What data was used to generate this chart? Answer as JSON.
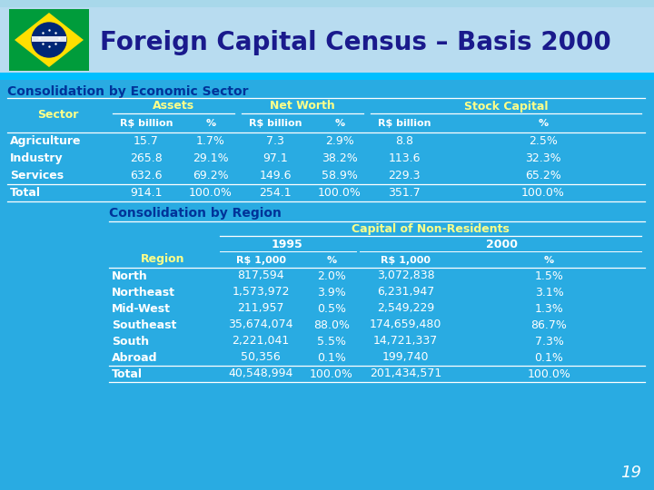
{
  "title": "Foreign Capital Census – Basis 2000",
  "bg_color": "#29ABE2",
  "header_bg": "#ADD8E6",
  "title_color": "#1a1a8c",
  "label_color": "#FFFF88",
  "white": "#FFFFFF",
  "section_color": "#003399",
  "section1_title": "Consolidation by Economic Sector",
  "section2_title": "Consolidation by Region",
  "sector_table": {
    "col_groups": [
      "Assets",
      "Net Worth",
      "Stock Capital"
    ],
    "rows": [
      [
        "Agriculture",
        "15.7",
        "1.7%",
        "7.3",
        "2.9%",
        "8.8",
        "2.5%"
      ],
      [
        "Industry",
        "265.8",
        "29.1%",
        "97.1",
        "38.2%",
        "113.6",
        "32.3%"
      ],
      [
        "Services",
        "632.6",
        "69.2%",
        "149.6",
        "58.9%",
        "229.3",
        "65.2%"
      ]
    ],
    "total_row": [
      "Total",
      "914.1",
      "100.0%",
      "254.1",
      "100.0%",
      "351.7",
      "100.0%"
    ]
  },
  "region_table": {
    "col_group": "Capital of Non-Residents",
    "year_cols": [
      "1995",
      "2000"
    ],
    "rows": [
      [
        "North",
        "817,594",
        "2.0%",
        "3,072,838",
        "1.5%"
      ],
      [
        "Northeast",
        "1,573,972",
        "3.9%",
        "6,231,947",
        "3.1%"
      ],
      [
        "Mid-West",
        "211,957",
        "0.5%",
        "2,549,229",
        "1.3%"
      ],
      [
        "Southeast",
        "35,674,074",
        "88.0%",
        "174,659,480",
        "86.7%"
      ],
      [
        "South",
        "2,221,041",
        "5.5%",
        "14,721,337",
        "7.3%"
      ],
      [
        "Abroad",
        "50,356",
        "0.1%",
        "199,740",
        "0.1%"
      ]
    ],
    "total_row": [
      "Total",
      "40,548,994",
      "100.0%",
      "201,434,571",
      "100.0%"
    ]
  },
  "page_number": "19"
}
